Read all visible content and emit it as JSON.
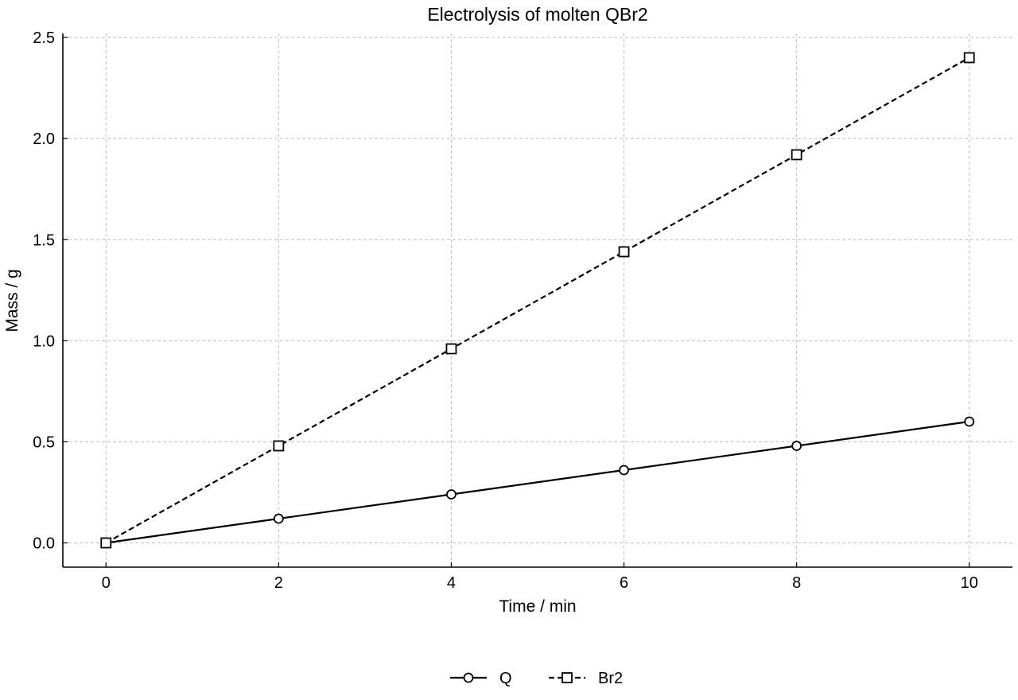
{
  "chart_data": {
    "type": "line",
    "title": "Electrolysis of molten QBr2",
    "xlabel": "Time / min",
    "ylabel": "Mass / g",
    "x": [
      0,
      2,
      4,
      6,
      8,
      10
    ],
    "xlim": [
      -0.5,
      10.5
    ],
    "ylim": [
      -0.12,
      2.52
    ],
    "x_ticks": [
      "0",
      "2",
      "4",
      "6",
      "8",
      "10"
    ],
    "y_ticks": [
      "0.0",
      "0.5",
      "1.0",
      "1.5",
      "2.0",
      "2.5"
    ],
    "grid": true,
    "legend_position": "bottom-center",
    "series": [
      {
        "name": "Q",
        "values": [
          0,
          0.12,
          0.24,
          0.36,
          0.48,
          0.6
        ],
        "line_style": "solid",
        "marker": "circle",
        "color": "#000000"
      },
      {
        "name": "Br2",
        "values": [
          0,
          0.48,
          0.96,
          1.44,
          1.92,
          2.4
        ],
        "line_style": "dashed",
        "marker": "square",
        "color": "#000000"
      }
    ]
  }
}
